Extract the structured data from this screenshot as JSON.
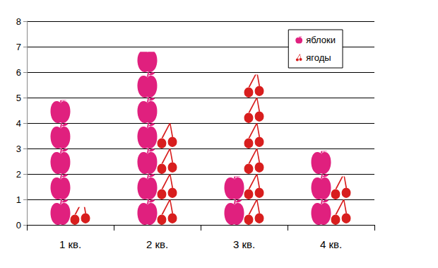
{
  "chart_data": {
    "type": "bar",
    "categories": [
      "1 кв.",
      "2 кв.",
      "3 кв.",
      "4 кв."
    ],
    "series": [
      {
        "name": "яблоки",
        "color": "#e0207e",
        "marker": "apple",
        "values": [
          4.9,
          6.8,
          1.9,
          2.9
        ]
      },
      {
        "name": "ягоды",
        "color": "#d81e1e",
        "marker": "cherry",
        "values": [
          0.7,
          4.0,
          5.9,
          1.9
        ]
      }
    ],
    "ylim": [
      0,
      8
    ],
    "yticks": [
      0,
      1,
      2,
      3,
      4,
      5,
      6,
      7,
      8
    ],
    "grid": true,
    "legend": "top-right"
  }
}
